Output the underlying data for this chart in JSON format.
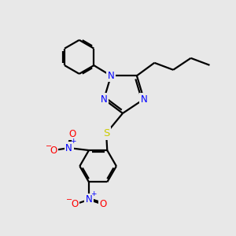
{
  "bg_color": "#e8e8e8",
  "bond_color": "#000000",
  "N_color": "#0000ff",
  "O_color": "#ff0000",
  "S_color": "#cccc00",
  "figsize": [
    3.0,
    3.0
  ],
  "dpi": 100,
  "xlim": [
    0,
    10
  ],
  "ylim": [
    0,
    10
  ],
  "lw": 1.6,
  "fs": 8.5
}
